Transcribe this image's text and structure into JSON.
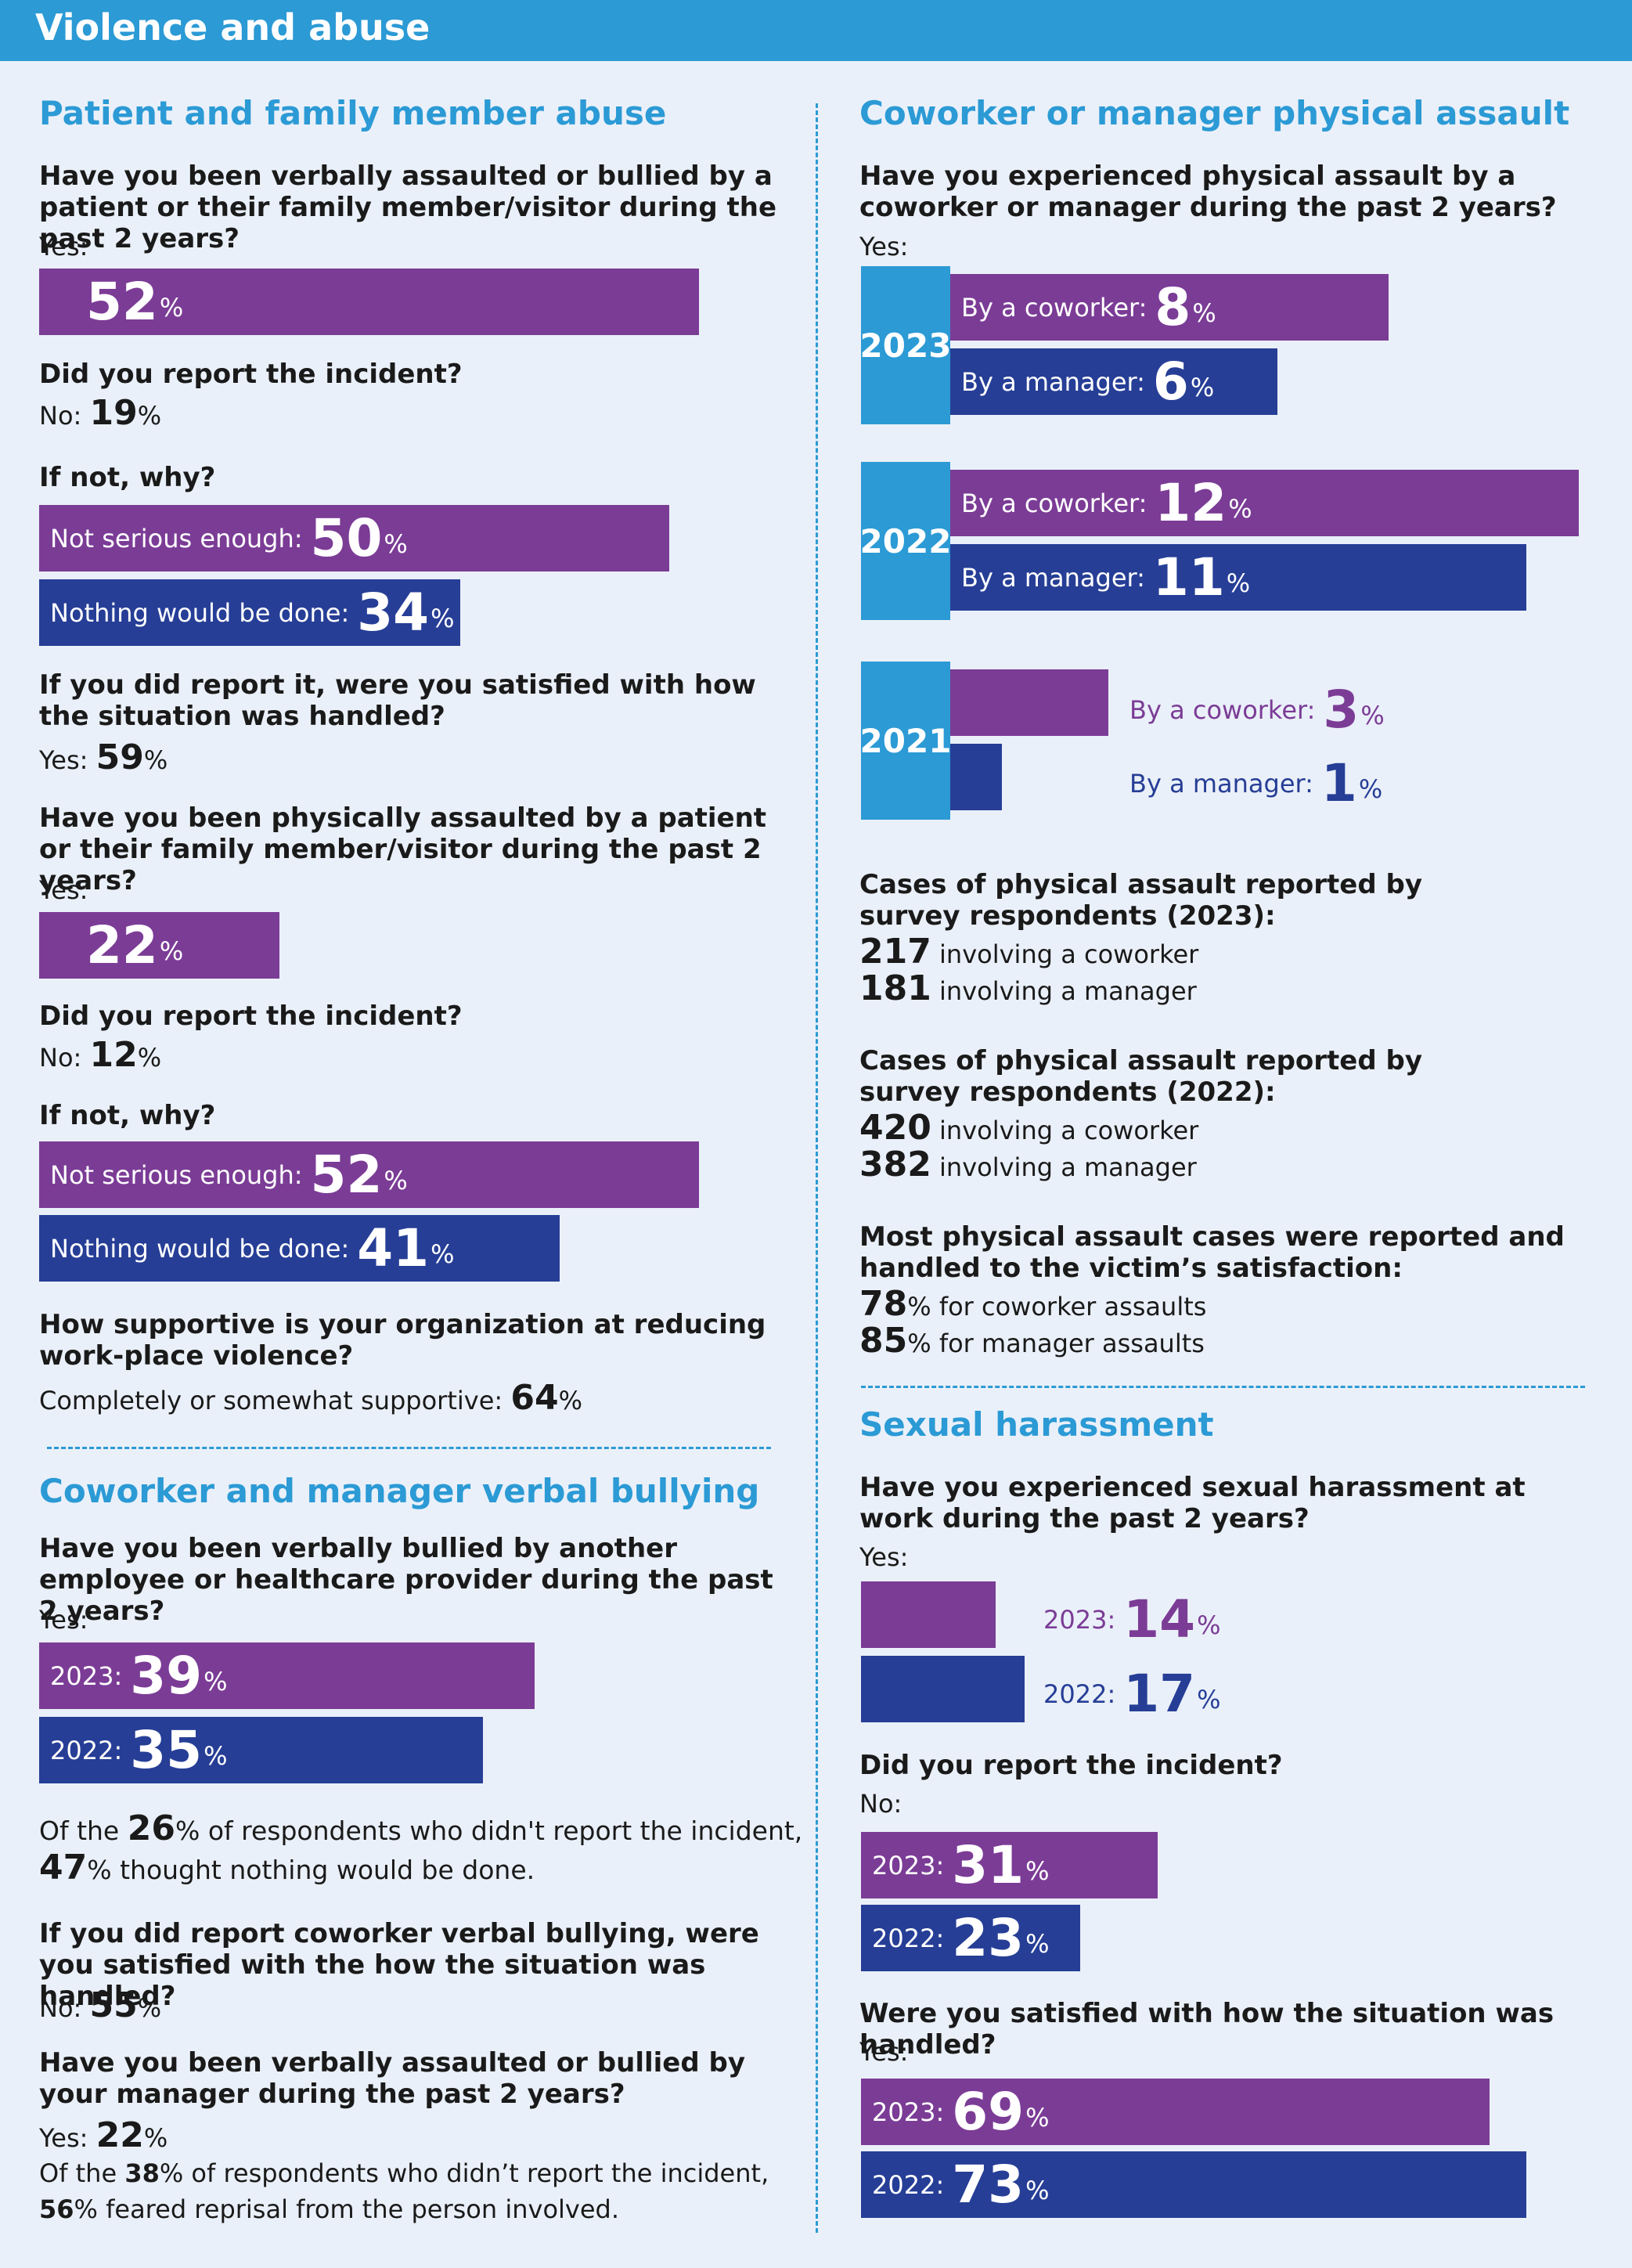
{
  "header": {
    "title": "Violence and abuse"
  },
  "patient": {
    "heading": "Patient and family member abuse",
    "q1": "Have you been verbally assaulted or bullied by a patient or their family member/visitor during the past 2 years?",
    "yes_label": "Yes:",
    "verbal_yes": "52",
    "q_report": "Did you report the incident?",
    "no_label": "No:",
    "verbal_no": "19",
    "q_why": "If not, why?",
    "not_serious_label": "Not serious enough:",
    "nothing_label": "Nothing would be done:",
    "verbal_not_serious": "50",
    "verbal_nothing": "34",
    "q_satisfied": "If you did report it, were you satisfied with how the situation was handled?",
    "satisfied_yes": "59",
    "q_physical": "Have you been physically assaulted by a patient or their family member/visitor during the past 2 years?",
    "physical_yes": "22",
    "physical_no": "12",
    "physical_not_serious": "52",
    "physical_nothing": "41",
    "q_supportive": "How supportive is your organization at reducing work-place violence?",
    "supportive_label": "Completely or somewhat supportive:",
    "supportive_value": "64"
  },
  "verbal_bullying": {
    "heading": "Coworker and manager verbal bullying",
    "q1": "Have you been verbally bullied by another employee or healthcare provider during the past 2 years?",
    "year_2023": "2023:",
    "year_2022": "2022:",
    "val_2023": "39",
    "val_2022": "35",
    "of_the": "Of the",
    "didnt_report_pct": "26",
    "didnt_report_text": "of respondents who didn't report the incident,",
    "nothing_pct": "47",
    "nothing_text": "thought nothing would be done.",
    "q_satisfied": "If you did report coworker verbal bullying, were you satisfied with the how the situation was handled?",
    "satisfied_no": "55",
    "q_manager": "Have you been verbally assaulted or bullied by your manager during the past 2 years?",
    "manager_yes": "22",
    "manager_didnt_pct": "38",
    "manager_didnt_text": "of respondents who didn’t report the incident,",
    "reprisal_pct": "56",
    "reprisal_text": "feared reprisal from the person involved."
  },
  "physical_assault": {
    "heading": "Coworker or manager physical assault",
    "q1": "Have you experienced physical assault by a coworker or manager during the past 2 years?",
    "coworker_label": "By a coworker:",
    "manager_label": "By a manager:",
    "years": [
      "2023",
      "2022",
      "2021"
    ],
    "cases_2023_title": "Cases of physical assault reported by survey respondents (2023):",
    "cases_2023_coworker": "217",
    "cases_2023_manager": "181",
    "cases_2022_title": "Cases of physical assault reported by survey respondents (2022):",
    "cases_2022_coworker": "420",
    "cases_2022_manager": "382",
    "involving_coworker": "involving a coworker",
    "involving_manager": "involving a manager",
    "satisfaction_title": "Most physical assault cases were reported and handled to the victim’s satisfaction:",
    "coworker_satisfied": "78",
    "coworker_satisfied_text": "for coworker assaults",
    "manager_satisfied": "85",
    "manager_satisfied_text": "for manager assaults"
  },
  "sexual": {
    "heading": "Sexual harassment",
    "q1": "Have you experienced sexual harassment at work during the past 2 years?",
    "y2023": "2023:",
    "y2022": "2022:",
    "harass_2023": "14",
    "harass_2022": "17",
    "q_report": "Did you report the incident?",
    "report_no_2023": "31",
    "report_no_2022": "23",
    "q_satisfied": "Were you satisfied with how the situation was handled?",
    "satisfied_2023": "69",
    "satisfied_2022": "73"
  },
  "common": {
    "pct": "%",
    "yes": "Yes:",
    "no": "No:"
  },
  "colors": {
    "accent": "#2b9ad5",
    "purple": "#7b3c96",
    "blue": "#263e96",
    "background": "#eaf0f9"
  },
  "chart_data": [
    {
      "type": "bar",
      "title": "Have you been verbally assaulted or bullied by a patient or their family member/visitor during the past 2 years?",
      "categories": [
        "Yes"
      ],
      "values": [
        52
      ],
      "unit": "%"
    },
    {
      "type": "bar",
      "title": "If not, why?",
      "categories": [
        "Not serious enough",
        "Nothing would be done"
      ],
      "values": [
        50,
        34
      ],
      "unit": "%"
    },
    {
      "type": "bar",
      "title": "Have you been physically assaulted by a patient or their family member/visitor during the past 2 years?",
      "categories": [
        "Yes"
      ],
      "values": [
        22
      ],
      "unit": "%"
    },
    {
      "type": "bar",
      "title": "If not, why?",
      "categories": [
        "Not serious enough",
        "Nothing would be done"
      ],
      "values": [
        52,
        41
      ],
      "unit": "%"
    },
    {
      "type": "bar",
      "title": "Have you been verbally bullied by another employee or healthcare provider during the past 2 years?",
      "categories": [
        "2023",
        "2022"
      ],
      "values": [
        39,
        35
      ],
      "unit": "%"
    },
    {
      "type": "bar",
      "title": "Have you experienced physical assault by a coworker or manager during the past 2 years?",
      "categories": [
        "2023",
        "2022",
        "2021"
      ],
      "series": [
        {
          "name": "By a coworker",
          "values": [
            8,
            12,
            3
          ]
        },
        {
          "name": "By a manager",
          "values": [
            6,
            11,
            1
          ]
        }
      ],
      "unit": "%"
    },
    {
      "type": "bar",
      "title": "Have you experienced sexual harassment at work during the past 2 years?",
      "categories": [
        "2023",
        "2022"
      ],
      "values": [
        14,
        17
      ],
      "unit": "%"
    },
    {
      "type": "bar",
      "title": "Did you report the incident?",
      "categories": [
        "2023",
        "2022"
      ],
      "values": [
        31,
        23
      ],
      "unit": "%"
    },
    {
      "type": "bar",
      "title": "Were you satisfied with how the situation was handled?",
      "categories": [
        "2023",
        "2022"
      ],
      "values": [
        69,
        73
      ],
      "unit": "%"
    }
  ]
}
